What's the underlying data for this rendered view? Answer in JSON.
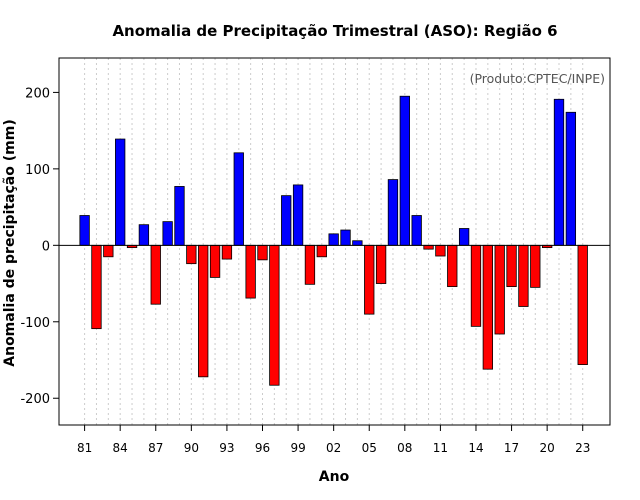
{
  "chart_data": {
    "type": "bar",
    "title": "Anomalia de Precipitação Trimestral (ASO): Região 6",
    "xlabel": "Ano",
    "ylabel": "Anomalia de precipitação (mm)",
    "credit": "(Produto:CPTEC/INPE)",
    "ylim": [
      -235,
      245
    ],
    "y_ticks": [
      -200,
      -100,
      0,
      100,
      200
    ],
    "x_tick_labels": [
      "81",
      "84",
      "87",
      "90",
      "93",
      "96",
      "99",
      "02",
      "05",
      "08",
      "11",
      "14",
      "17",
      "20",
      "23"
    ],
    "x_tick_years": [
      1981,
      1984,
      1987,
      1990,
      1993,
      1996,
      1999,
      2002,
      2005,
      2008,
      2011,
      2014,
      2017,
      2020,
      2023
    ],
    "grid": true,
    "colors": {
      "positive": "#0000ff",
      "negative": "#ff0000",
      "grid": "#cccccc"
    },
    "years": [
      1981,
      1982,
      1983,
      1984,
      1985,
      1986,
      1987,
      1988,
      1989,
      1990,
      1991,
      1992,
      1993,
      1994,
      1995,
      1996,
      1997,
      1998,
      1999,
      2000,
      2001,
      2002,
      2003,
      2004,
      2005,
      2006,
      2007,
      2008,
      2009,
      2010,
      2011,
      2012,
      2013,
      2014,
      2015,
      2016,
      2017,
      2018,
      2019,
      2020,
      2021,
      2022,
      2023
    ],
    "values": [
      39,
      -109,
      -15,
      139,
      -3,
      27,
      -77,
      31,
      77,
      -24,
      -172,
      -42,
      -18,
      121,
      -69,
      -19,
      -183,
      65,
      79,
      -51,
      -15,
      15,
      20,
      6,
      -90,
      -50,
      86,
      195,
      39,
      -5,
      -14,
      -54,
      22,
      -106,
      -162,
      -116,
      -54,
      -80,
      -55,
      -3,
      191,
      174,
      -156
    ]
  }
}
